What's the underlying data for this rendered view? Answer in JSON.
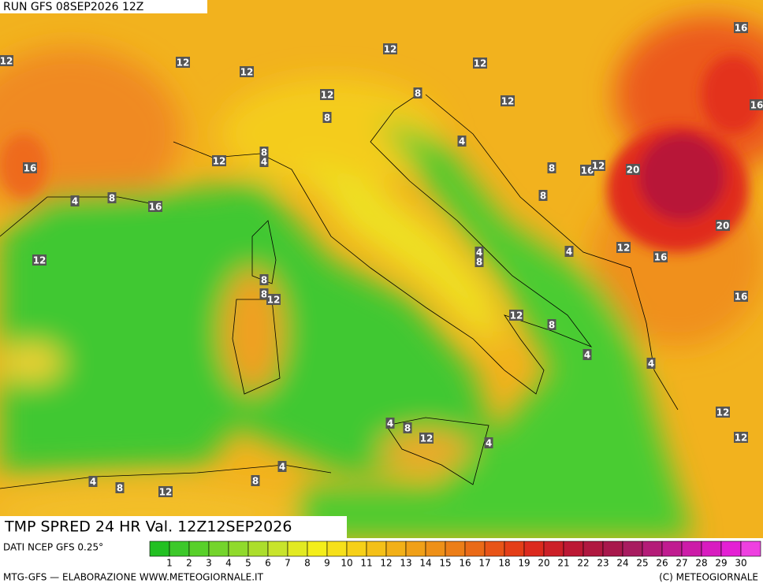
{
  "header": {
    "run": "RUN GFS 08SEP2026 12Z"
  },
  "contour_labels": [
    "12",
    "12",
    "12",
    "12",
    "16",
    "12",
    "12",
    "8",
    "12",
    "16",
    "8",
    "4",
    "16",
    "12",
    "8",
    "4",
    "8",
    "16",
    "12",
    "20",
    "8",
    "4",
    "16",
    "8",
    "20",
    "12",
    "4",
    "8",
    "4",
    "12",
    "16",
    "8",
    "8",
    "12",
    "16",
    "12",
    "8",
    "4",
    "4",
    "12",
    "12",
    "4",
    "8",
    "12",
    "4",
    "4",
    "8",
    "4",
    "12",
    "8"
  ],
  "footer": {
    "title": "TMP SPRED 24 HR Val. 12Z12SEP2026",
    "source": "DATI NCEP GFS 0.25°",
    "credit": "MTG-GFS — ELABORAZIONE WWW.METEOGIORNALE.IT",
    "copyright": "(C) METEOGIORNALE"
  },
  "colorbar": {
    "labels": [
      "1",
      "2",
      "3",
      "4",
      "5",
      "6",
      "7",
      "8",
      "9",
      "10",
      "11",
      "12",
      "13",
      "14",
      "15",
      "16",
      "17",
      "18",
      "19",
      "20",
      "21",
      "22",
      "23",
      "24",
      "25",
      "26",
      "27",
      "28",
      "29",
      "30"
    ]
  }
}
